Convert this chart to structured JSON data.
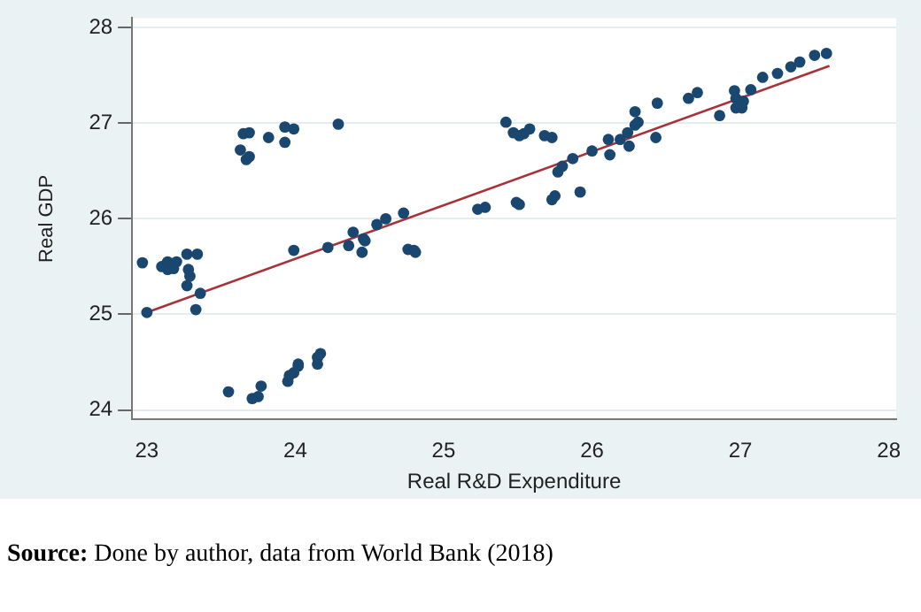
{
  "chart_data": {
    "type": "scatter",
    "xlabel": "Real R&D Expenditure",
    "ylabel": "Real GDP",
    "xlim": [
      22.9,
      28.05
    ],
    "ylim": [
      23.9,
      28.1
    ],
    "xticks": [
      23,
      24,
      25,
      26,
      27,
      28
    ],
    "yticks": [
      24,
      25,
      26,
      27,
      28
    ],
    "grid": "y",
    "legend": false,
    "annotations": [
      "Source: Done by author, data from World Bank (2018)"
    ],
    "series": [
      {
        "color": "#1a476f",
        "marker": "circle",
        "x": [
          22.97,
          23.0,
          23.1,
          23.14,
          23.2,
          23.14,
          23.18,
          23.27,
          23.34,
          23.28,
          23.29,
          23.27,
          23.33,
          23.36,
          23.65,
          23.69,
          23.63,
          23.67,
          23.69,
          23.82,
          23.93,
          23.93,
          23.99,
          24.29,
          23.99,
          24.22,
          24.36,
          24.39,
          24.45,
          24.46,
          24.47,
          24.55,
          24.61,
          24.73,
          24.76,
          24.8,
          24.81,
          25.23,
          25.28,
          25.42,
          25.47,
          25.51,
          25.54,
          25.58,
          25.68,
          25.73,
          25.49,
          25.51,
          25.73,
          25.75,
          25.92,
          25.77,
          25.8,
          25.87,
          26.0,
          26.11,
          26.12,
          26.19,
          26.24,
          26.25,
          26.29,
          26.31,
          26.29,
          26.43,
          26.44,
          26.65,
          26.71,
          26.86,
          26.96,
          26.97,
          26.97,
          27.01,
          27.02,
          27.07,
          27.15,
          27.25,
          27.34,
          27.4,
          27.5,
          27.58,
          23.55,
          23.71,
          23.75,
          23.77,
          23.95,
          23.96,
          23.99,
          24.02,
          24.02,
          24.15,
          24.15,
          24.17
        ],
        "values": [
          25.54,
          25.02,
          25.5,
          25.55,
          25.55,
          25.47,
          25.48,
          25.63,
          25.63,
          25.47,
          25.4,
          25.3,
          25.05,
          25.22,
          26.89,
          26.9,
          26.72,
          26.62,
          26.65,
          26.85,
          26.96,
          26.8,
          26.94,
          26.99,
          25.67,
          25.7,
          25.72,
          25.86,
          25.65,
          25.79,
          25.77,
          25.94,
          26.0,
          26.06,
          25.68,
          25.67,
          25.65,
          26.1,
          26.12,
          27.01,
          26.9,
          26.87,
          26.89,
          26.94,
          26.87,
          26.85,
          26.17,
          26.15,
          26.2,
          26.24,
          26.28,
          26.49,
          26.55,
          26.63,
          26.71,
          26.83,
          26.67,
          26.83,
          26.9,
          26.76,
          26.98,
          27.01,
          27.12,
          26.85,
          27.21,
          27.26,
          27.32,
          27.08,
          27.34,
          27.26,
          27.16,
          27.16,
          27.23,
          27.35,
          27.48,
          27.52,
          27.59,
          27.64,
          27.71,
          27.73,
          24.19,
          24.12,
          24.14,
          24.25,
          24.3,
          24.36,
          24.39,
          24.46,
          24.48,
          24.48,
          24.55,
          24.59
        ]
      },
      {
        "type": "line",
        "marker": "none",
        "color": "#a8323a",
        "x": [
          23.0,
          27.6
        ],
        "values": [
          25.02,
          27.6
        ]
      }
    ]
  }
}
